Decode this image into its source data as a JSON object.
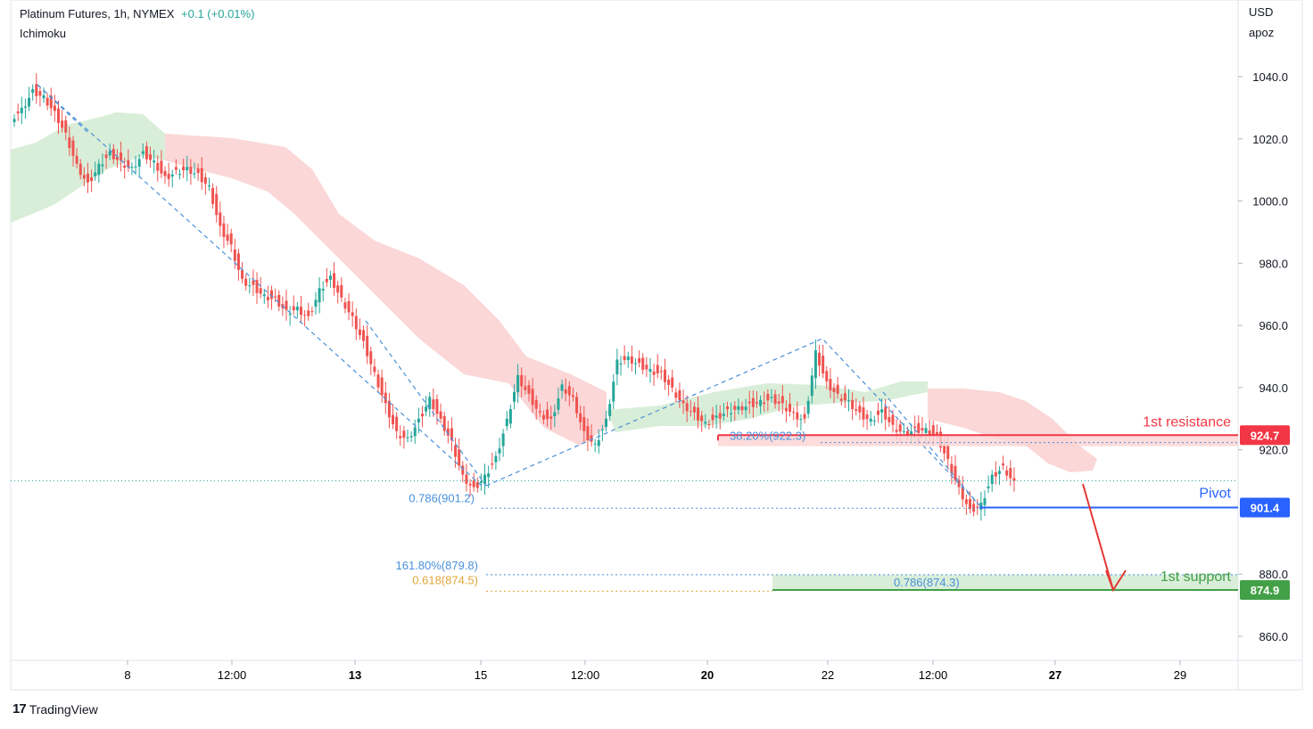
{
  "header": {
    "symbol": "Platinum Futures, 1h, NYMEX",
    "change": "+0.1 (+0.01%)",
    "indicator": "Ichimoku"
  },
  "price_axis": {
    "currency": "USD",
    "scale_label": "apoz"
  },
  "brand": {
    "name": "TradingView",
    "logo": "17"
  },
  "colors": {
    "up": "#26a69a",
    "down": "#ef5350",
    "resistance": "#f23645",
    "pivot": "#2962ff",
    "support": "#43a047",
    "fib": "#4a90d9",
    "fib_alt": "#e0a63a",
    "arrow": "#e53935",
    "cloud_bear": "#fbd3d3",
    "cloud_bull": "#d5ecd5"
  },
  "chart_data": {
    "type": "candlestick",
    "ylim": [
      855.0,
      1047.0
    ],
    "y_ticks": [
      "1040.0",
      "1020.0",
      "1000.0",
      "980.0",
      "960.0",
      "940.0",
      "920.0",
      "880.0",
      "860.0"
    ],
    "x_ticks": [
      "8",
      "12:00",
      "13",
      "15",
      "12:00",
      "20",
      "22",
      "12:00",
      "27",
      "29"
    ],
    "x_ticks_bold": [
      "13",
      "20",
      "27"
    ],
    "price_trajectory": [
      1027,
      1030,
      1036,
      1034,
      1029,
      1022,
      1012,
      1006,
      1012,
      1016,
      1013,
      1011,
      1016,
      1013,
      1008,
      1010,
      1011,
      1009,
      1005,
      992,
      986,
      975,
      973,
      970,
      969,
      965,
      966,
      963,
      972,
      976,
      969,
      963,
      955,
      945,
      935,
      926,
      924,
      930,
      937,
      930,
      923,
      912,
      908,
      912,
      918,
      930,
      944,
      938,
      932,
      930,
      941,
      937,
      926,
      922,
      930,
      949,
      950,
      948,
      946,
      945,
      940,
      935,
      932,
      929,
      931,
      933,
      934,
      935,
      936,
      937,
      935,
      932,
      930,
      952,
      942,
      938,
      936,
      932,
      930,
      933,
      928,
      926,
      927,
      927,
      925,
      917,
      908,
      901,
      903,
      912,
      915,
      910
    ],
    "annotations": {
      "resistance": {
        "label": "1st resistance",
        "value": 924.7,
        "badge": "924.7"
      },
      "pivot": {
        "label": "Pivot",
        "value": 901.4,
        "badge": "901.4"
      },
      "support": {
        "label": "1st support",
        "value": 874.9,
        "badge": "874.9"
      },
      "last_price": 910.0,
      "fib_labels": [
        {
          "text": "38.20%(922.3)",
          "value": 922.3
        },
        {
          "text": "0.786(901.2)",
          "value": 901.2
        },
        {
          "text": "161.80%(879.8)",
          "value": 879.8
        },
        {
          "text": "0.618(874.5)",
          "value": 874.5
        },
        {
          "text": "0.786(874.3)",
          "value": 874.3
        }
      ]
    }
  }
}
